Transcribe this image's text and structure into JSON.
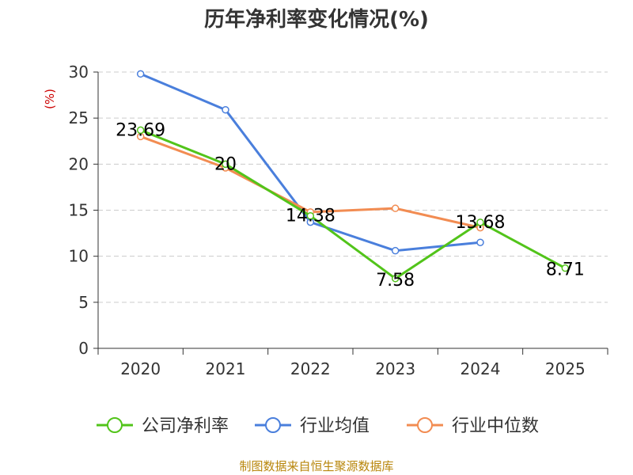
{
  "chart_data": {
    "type": "line",
    "title": "历年净利率变化情况(%)",
    "ylabel": "(%)",
    "xlabel": "",
    "categories": [
      "2020",
      "2021",
      "2022",
      "2023",
      "2024",
      "2025"
    ],
    "ylim": [
      0,
      30
    ],
    "yticks": [
      0,
      5,
      10,
      15,
      20,
      25,
      30
    ],
    "grid": true,
    "legend_position": "bottom",
    "series": [
      {
        "name": "公司净利率",
        "color": "#52c41a",
        "values": [
          23.69,
          20,
          14.38,
          7.58,
          13.68,
          8.71
        ],
        "labels": [
          "23.69",
          "20",
          "14.38",
          "7.58",
          "13.68",
          "8.71"
        ]
      },
      {
        "name": "行业均值",
        "color": "#4a7fdc",
        "values": [
          29.8,
          25.9,
          13.7,
          10.6,
          11.5,
          null
        ]
      },
      {
        "name": "行业中位数",
        "color": "#f28c52",
        "values": [
          23.0,
          19.6,
          14.8,
          15.2,
          13.1,
          null
        ]
      }
    ]
  },
  "source": "制图数据来自恒生聚源数据库"
}
